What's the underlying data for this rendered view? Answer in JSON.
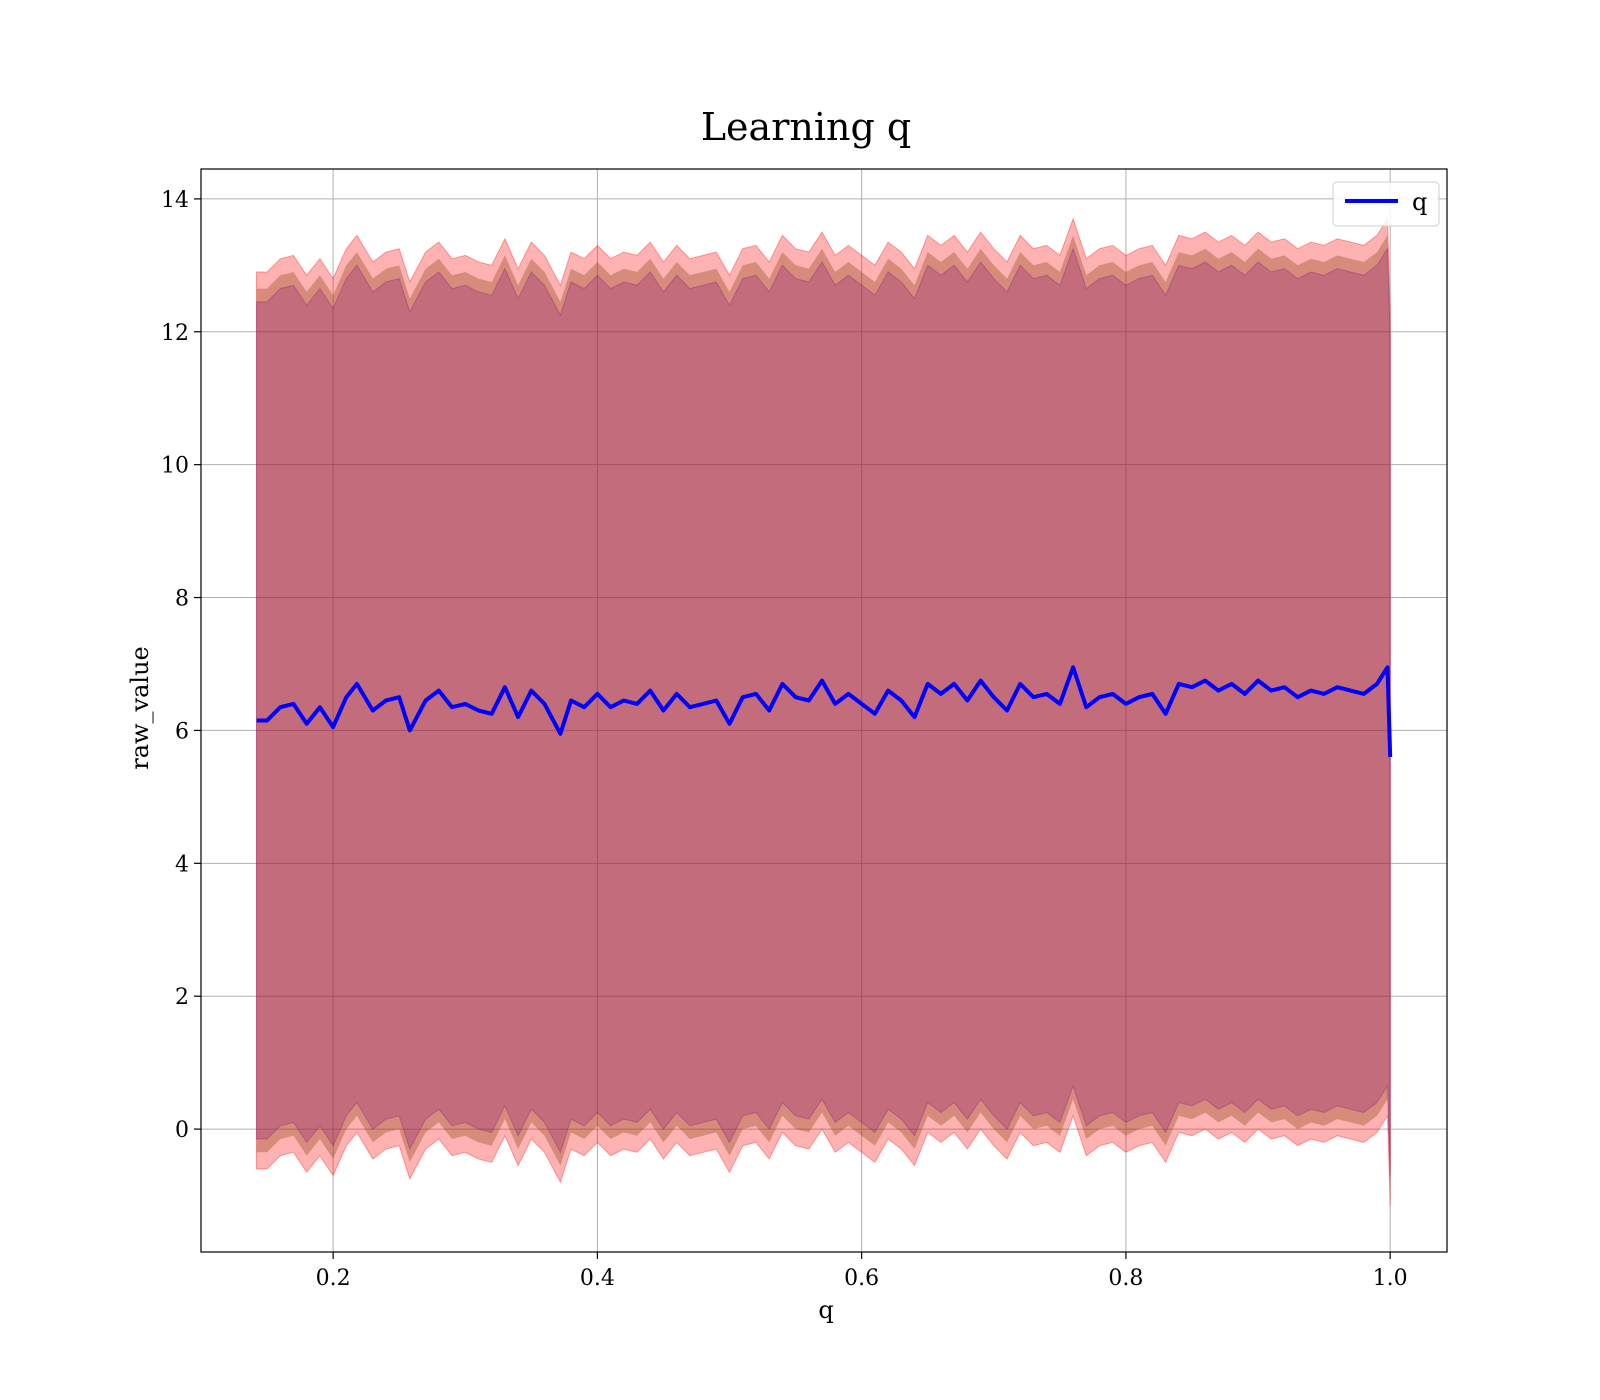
{
  "chart_data": {
    "type": "line",
    "title": "Learning q",
    "xlabel": "q",
    "ylabel": "raw_value",
    "xlim": [
      0.1,
      1.043
    ],
    "ylim": [
      -1.85,
      14.45
    ],
    "xticks": [
      0.2,
      0.4,
      0.6,
      0.8,
      1.0
    ],
    "xtick_labels": [
      "0.2",
      "0.4",
      "0.6",
      "0.8",
      "1.0"
    ],
    "yticks": [
      0,
      2,
      4,
      6,
      8,
      10,
      12,
      14
    ],
    "ytick_labels": [
      "0",
      "2",
      "4",
      "6",
      "8",
      "10",
      "12",
      "14"
    ],
    "grid": true,
    "legend": {
      "placement": "top-right",
      "entries": [
        "q"
      ]
    },
    "colors": {
      "line": "#0000ff",
      "band_outer": "#ff0000",
      "band_inner": "#8b4513",
      "band_core": "#800080"
    },
    "series": [
      {
        "name": "q",
        "x": [
          0.142,
          0.15,
          0.16,
          0.17,
          0.18,
          0.19,
          0.2,
          0.21,
          0.218,
          0.23,
          0.24,
          0.25,
          0.258,
          0.27,
          0.28,
          0.29,
          0.3,
          0.31,
          0.32,
          0.33,
          0.34,
          0.35,
          0.36,
          0.372,
          0.38,
          0.39,
          0.4,
          0.41,
          0.42,
          0.43,
          0.44,
          0.45,
          0.46,
          0.47,
          0.48,
          0.49,
          0.5,
          0.51,
          0.52,
          0.53,
          0.54,
          0.55,
          0.56,
          0.57,
          0.58,
          0.59,
          0.6,
          0.61,
          0.62,
          0.63,
          0.64,
          0.65,
          0.66,
          0.67,
          0.68,
          0.69,
          0.7,
          0.71,
          0.72,
          0.73,
          0.74,
          0.75,
          0.76,
          0.77,
          0.78,
          0.79,
          0.8,
          0.81,
          0.82,
          0.83,
          0.84,
          0.85,
          0.86,
          0.87,
          0.88,
          0.89,
          0.9,
          0.91,
          0.92,
          0.93,
          0.94,
          0.95,
          0.96,
          0.97,
          0.98,
          0.99,
          0.998,
          1.0
        ],
        "y": [
          6.15,
          6.15,
          6.35,
          6.4,
          6.1,
          6.35,
          6.05,
          6.5,
          6.7,
          6.3,
          6.45,
          6.5,
          6.0,
          6.45,
          6.6,
          6.35,
          6.4,
          6.3,
          6.25,
          6.65,
          6.2,
          6.6,
          6.4,
          5.95,
          6.45,
          6.35,
          6.55,
          6.35,
          6.45,
          6.4,
          6.6,
          6.3,
          6.55,
          6.35,
          6.4,
          6.45,
          6.1,
          6.5,
          6.55,
          6.3,
          6.7,
          6.5,
          6.45,
          6.75,
          6.4,
          6.55,
          6.4,
          6.25,
          6.6,
          6.45,
          6.2,
          6.7,
          6.55,
          6.7,
          6.45,
          6.75,
          6.5,
          6.3,
          6.7,
          6.5,
          6.55,
          6.4,
          6.95,
          6.35,
          6.5,
          6.55,
          6.4,
          6.5,
          6.55,
          6.25,
          6.7,
          6.65,
          6.75,
          6.6,
          6.7,
          6.55,
          6.75,
          6.6,
          6.65,
          6.5,
          6.6,
          6.55,
          6.65,
          6.6,
          6.55,
          6.7,
          6.95,
          5.6
        ]
      }
    ],
    "band_spread": {
      "outer": 6.75,
      "inner": 6.5,
      "core": 6.3
    }
  }
}
